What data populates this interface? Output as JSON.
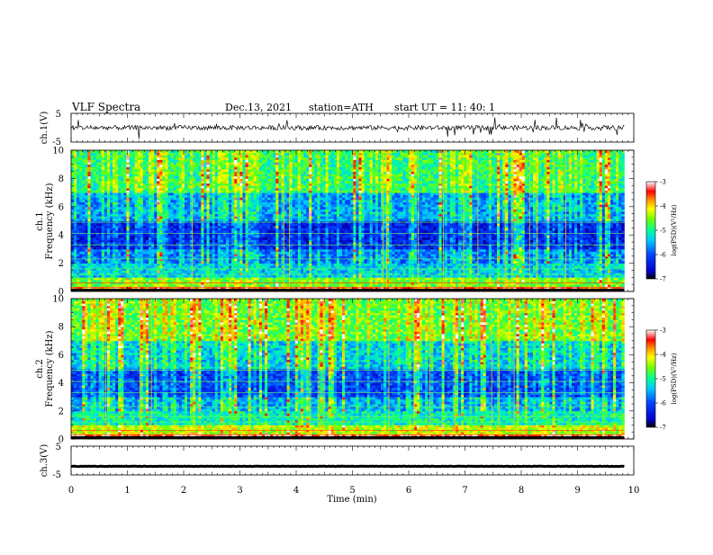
{
  "header": {
    "title": "VLF  Spectra",
    "date": "Dec.13, 2021",
    "station": "station=ATH",
    "start": "start  UT  =    11: 40: 1"
  },
  "chart_data": [
    {
      "type": "line",
      "name": "ch1-waveform",
      "ylabel": "ch.1(V)",
      "yticks": [
        "5",
        "-5"
      ],
      "ylim": [
        -5,
        5
      ],
      "xlim": [
        0,
        10
      ],
      "x_end": 9.83,
      "level": 0,
      "color": "#000000",
      "noise": "dense spiky trace near 0 V"
    },
    {
      "type": "heatmap",
      "name": "ch1-spectrogram",
      "ylabel": "ch.1\nFrequency  (kHz)",
      "yticks": [
        "0",
        "2",
        "4",
        "6",
        "8",
        "10"
      ],
      "ylim": [
        0,
        10
      ],
      "xlim": [
        0,
        10
      ],
      "x_end": 9.83,
      "colorbar": {
        "label": "log(PSD)(V²/Hz)",
        "ticks": [
          "-3",
          "-4",
          "-5",
          "-6",
          "-7"
        ],
        "range": [
          -7,
          -3
        ],
        "colors": [
          "#000000",
          "#0000ff",
          "#00aaff",
          "#00ff88",
          "#aaff00",
          "#ffff00",
          "#ff8800",
          "#ff0000",
          "#ffffff"
        ]
      }
    },
    {
      "type": "heatmap",
      "name": "ch2-spectrogram",
      "ylabel": "ch.2\nFrequency  (kHz)",
      "yticks": [
        "0",
        "2",
        "4",
        "6",
        "8",
        "10"
      ],
      "ylim": [
        0,
        10
      ],
      "xlim": [
        0,
        10
      ],
      "x_end": 9.83,
      "colorbar": {
        "label": "log(PSD)(V²/Hz)",
        "ticks": [
          "-3",
          "-4",
          "-5",
          "-6",
          "-7"
        ],
        "range": [
          -7,
          -3
        ]
      }
    },
    {
      "type": "line",
      "name": "ch3-waveform",
      "ylabel": "ch.3(V)",
      "yticks": [
        "5",
        "-5"
      ],
      "ylim": [
        -5,
        5
      ],
      "xlim": [
        0,
        10
      ],
      "x_end": 9.83,
      "level": -2,
      "color": "#000000",
      "noise": "flat thick trace near -2 V"
    }
  ],
  "xaxis": {
    "label": "Time  (min)",
    "ticks": [
      "0",
      "1",
      "2",
      "3",
      "4",
      "5",
      "6",
      "7",
      "8",
      "9",
      "10"
    ],
    "xlim": [
      0,
      10
    ]
  }
}
